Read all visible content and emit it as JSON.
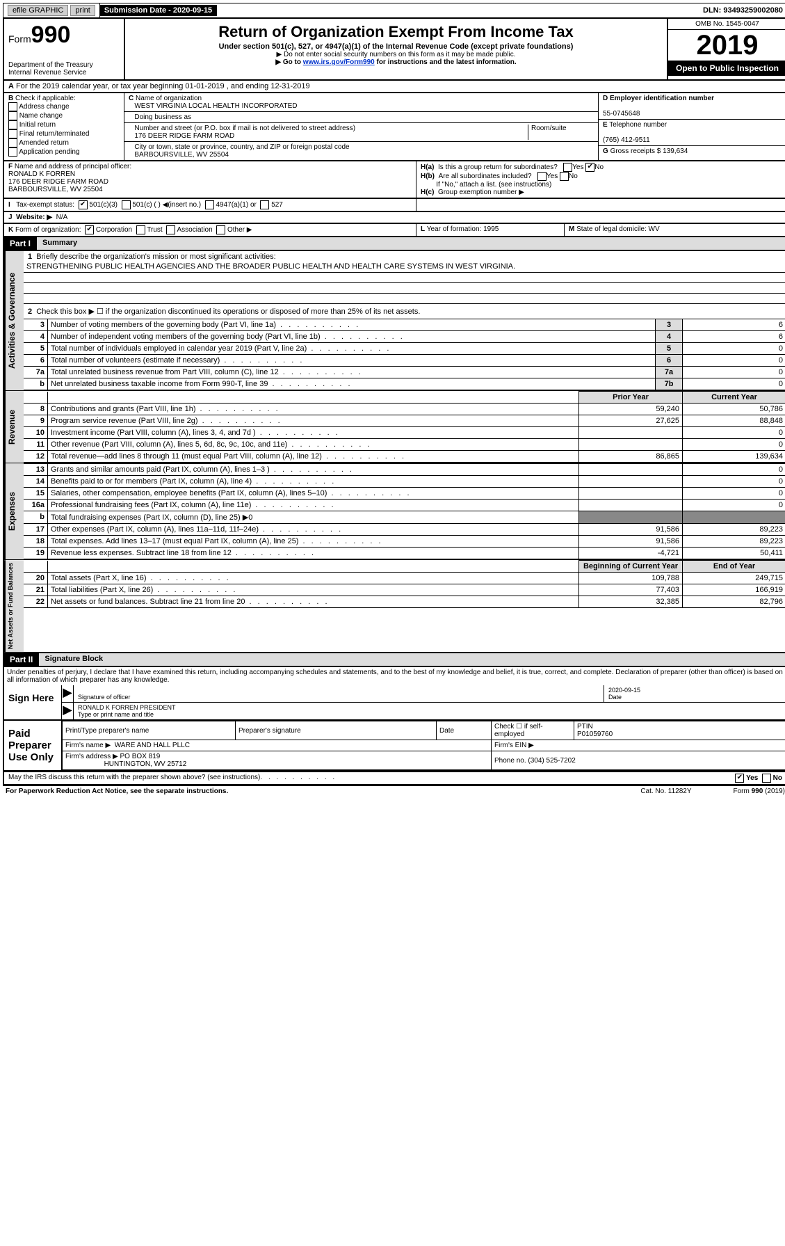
{
  "topbar": {
    "efile": "efile GRAPHIC",
    "print": "print",
    "sub_date_label": "Submission Date - 2020-09-15",
    "dln": "DLN: 93493259002080"
  },
  "header": {
    "form_label": "Form",
    "form_num": "990",
    "dept": "Department of the Treasury",
    "irs": "Internal Revenue Service",
    "title": "Return of Organization Exempt From Income Tax",
    "sub": "Under section 501(c), 527, or 4947(a)(1) of the Internal Revenue Code (except private foundations)",
    "note1": "▶ Do not enter social security numbers on this form as it may be made public.",
    "note2_pre": "▶ Go to ",
    "note2_link": "www.irs.gov/Form990",
    "note2_post": " for instructions and the latest information.",
    "omb": "OMB No. 1545-0047",
    "year": "2019",
    "open": "Open to Public Inspection"
  },
  "rowA": "For the 2019 calendar year, or tax year beginning 01-01-2019   , and ending 12-31-2019",
  "B": {
    "label": "Check if applicable:",
    "opts": [
      "Address change",
      "Name change",
      "Initial return",
      "Final return/terminated",
      "Amended return",
      "Application pending"
    ]
  },
  "C": {
    "name_label": "Name of organization",
    "name": "WEST VIRGINIA LOCAL HEALTH INCORPORATED",
    "dba_label": "Doing business as",
    "addr_label": "Number and street (or P.O. box if mail is not delivered to street address)",
    "room_label": "Room/suite",
    "addr": "176 DEER RIDGE FARM ROAD",
    "city_label": "City or town, state or province, country, and ZIP or foreign postal code",
    "city": "BARBOURSVILLE, WV  25504"
  },
  "D": {
    "label": "Employer identification number",
    "val": "55-0745648"
  },
  "E": {
    "label": "Telephone number",
    "val": "(765) 412-9511"
  },
  "G": {
    "label": "Gross receipts $",
    "val": "139,634"
  },
  "F": {
    "label": "Name and address of principal officer:",
    "name": "RONALD K FORREN",
    "addr1": "176 DEER RIDGE FARM ROAD",
    "addr2": "BARBOURSVILLE, WV  25504"
  },
  "H": {
    "a": "Is this a group return for subordinates?",
    "b": "Are all subordinates included?",
    "b_note": "If \"No,\" attach a list. (see instructions)",
    "c": "Group exemption number ▶",
    "yes": "Yes",
    "no": "No"
  },
  "I": {
    "label": "Tax-exempt status:",
    "o1": "501(c)(3)",
    "o2": "501(c) (  ) ◀(insert no.)",
    "o3": "4947(a)(1) or",
    "o4": "527"
  },
  "J": {
    "label": "Website: ▶",
    "val": "N/A"
  },
  "K": {
    "label": "Form of organization:",
    "o1": "Corporation",
    "o2": "Trust",
    "o3": "Association",
    "o4": "Other ▶"
  },
  "L": {
    "label": "Year of formation:",
    "val": "1995"
  },
  "M": {
    "label": "State of legal domicile:",
    "val": "WV"
  },
  "part1": {
    "header": "Part I",
    "title": "Summary"
  },
  "governance": {
    "label": "Activities & Governance",
    "l1": "Briefly describe the organization's mission or most significant activities:",
    "mission": "STRENGTHENING PUBLIC HEALTH AGENCIES AND THE BROADER PUBLIC HEALTH AND HEALTH CARE SYSTEMS IN WEST VIRGINIA.",
    "l2": "Check this box ▶ ☐  if the organization discontinued its operations or disposed of more than 25% of its net assets.",
    "rows": [
      {
        "n": "3",
        "d": "Number of voting members of the governing body (Part VI, line 1a)",
        "b": "3",
        "v": "6"
      },
      {
        "n": "4",
        "d": "Number of independent voting members of the governing body (Part VI, line 1b)",
        "b": "4",
        "v": "6"
      },
      {
        "n": "5",
        "d": "Total number of individuals employed in calendar year 2019 (Part V, line 2a)",
        "b": "5",
        "v": "0"
      },
      {
        "n": "6",
        "d": "Total number of volunteers (estimate if necessary)",
        "b": "6",
        "v": "0"
      },
      {
        "n": "7a",
        "d": "Total unrelated business revenue from Part VIII, column (C), line 12",
        "b": "7a",
        "v": "0"
      },
      {
        "n": "b",
        "d": "Net unrelated business taxable income from Form 990-T, line 39",
        "b": "7b",
        "v": "0"
      }
    ]
  },
  "revenue": {
    "label": "Revenue",
    "h1": "Prior Year",
    "h2": "Current Year",
    "rows": [
      {
        "n": "8",
        "d": "Contributions and grants (Part VIII, line 1h)",
        "p": "59,240",
        "c": "50,786"
      },
      {
        "n": "9",
        "d": "Program service revenue (Part VIII, line 2g)",
        "p": "27,625",
        "c": "88,848"
      },
      {
        "n": "10",
        "d": "Investment income (Part VIII, column (A), lines 3, 4, and 7d )",
        "p": "",
        "c": "0"
      },
      {
        "n": "11",
        "d": "Other revenue (Part VIII, column (A), lines 5, 6d, 8c, 9c, 10c, and 11e)",
        "p": "",
        "c": "0"
      },
      {
        "n": "12",
        "d": "Total revenue—add lines 8 through 11 (must equal Part VIII, column (A), line 12)",
        "p": "86,865",
        "c": "139,634"
      }
    ]
  },
  "expenses": {
    "label": "Expenses",
    "rows": [
      {
        "n": "13",
        "d": "Grants and similar amounts paid (Part IX, column (A), lines 1–3 )",
        "p": "",
        "c": "0"
      },
      {
        "n": "14",
        "d": "Benefits paid to or for members (Part IX, column (A), line 4)",
        "p": "",
        "c": "0"
      },
      {
        "n": "15",
        "d": "Salaries, other compensation, employee benefits (Part IX, column (A), lines 5–10)",
        "p": "",
        "c": "0"
      },
      {
        "n": "16a",
        "d": "Professional fundraising fees (Part IX, column (A), line 11e)",
        "p": "",
        "c": "0"
      },
      {
        "n": "b",
        "d": "Total fundraising expenses (Part IX, column (D), line 25) ▶0",
        "p": "—shade—",
        "c": "—shade—"
      },
      {
        "n": "17",
        "d": "Other expenses (Part IX, column (A), lines 11a–11d, 11f–24e)",
        "p": "91,586",
        "c": "89,223"
      },
      {
        "n": "18",
        "d": "Total expenses. Add lines 13–17 (must equal Part IX, column (A), line 25)",
        "p": "91,586",
        "c": "89,223"
      },
      {
        "n": "19",
        "d": "Revenue less expenses. Subtract line 18 from line 12",
        "p": "-4,721",
        "c": "50,411"
      }
    ]
  },
  "netassets": {
    "label": "Net Assets or Fund Balances",
    "h1": "Beginning of Current Year",
    "h2": "End of Year",
    "rows": [
      {
        "n": "20",
        "d": "Total assets (Part X, line 16)",
        "p": "109,788",
        "c": "249,715"
      },
      {
        "n": "21",
        "d": "Total liabilities (Part X, line 26)",
        "p": "77,403",
        "c": "166,919"
      },
      {
        "n": "22",
        "d": "Net assets or fund balances. Subtract line 21 from line 20",
        "p": "32,385",
        "c": "82,796"
      }
    ]
  },
  "part2": {
    "header": "Part II",
    "title": "Signature Block"
  },
  "perjury": "Under penalties of perjury, I declare that I have examined this return, including accompanying schedules and statements, and to the best of my knowledge and belief, it is true, correct, and complete. Declaration of preparer (other than officer) is based on all information of which preparer has any knowledge.",
  "sign": {
    "here": "Sign Here",
    "sig_label": "Signature of officer",
    "date": "2020-09-15",
    "date_label": "Date",
    "name": "RONALD K FORREN  PRESIDENT",
    "name_label": "Type or print name and title"
  },
  "preparer": {
    "label": "Paid Preparer Use Only",
    "h1": "Print/Type preparer's name",
    "h2": "Preparer's signature",
    "h3": "Date",
    "check_label": "Check ☐ if self-employed",
    "ptin_label": "PTIN",
    "ptin": "P01059760",
    "firm_name_label": "Firm's name   ▶",
    "firm_name": "WARE AND HALL PLLC",
    "firm_ein_label": "Firm's EIN ▶",
    "firm_addr_label": "Firm's address ▶",
    "firm_addr": "PO BOX 819",
    "firm_city": "HUNTINGTON, WV  25712",
    "phone_label": "Phone no.",
    "phone": "(304) 525-7202"
  },
  "discuss": "May the IRS discuss this return with the preparer shown above? (see instructions)",
  "footer": {
    "pra": "For Paperwork Reduction Act Notice, see the separate instructions.",
    "cat": "Cat. No. 11282Y",
    "form": "Form 990 (2019)"
  }
}
